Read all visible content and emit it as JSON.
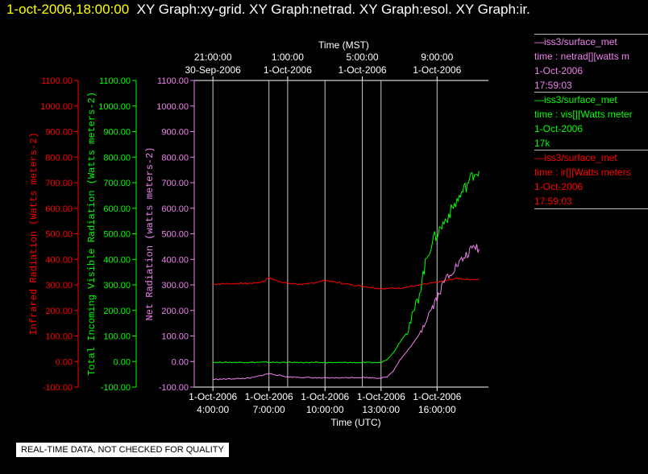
{
  "header": {
    "timestamp": "1-oct-2006,18:00:00",
    "graphs": "XY Graph:xy-grid.  XY Graph:netrad.  XY Graph:esol.  XY Graph:ir."
  },
  "legend": [
    {
      "lines": [
        "—iss3/surface_met",
        "time : netrad[][watts m",
        "1-Oct-2006",
        "17:59:03"
      ],
      "color": "#ee82ee"
    },
    {
      "lines": [
        "—iss3/surface_met",
        "time : vis[][Watts meter",
        "1-Oct-2006",
        "17k"
      ],
      "color": "#00ff00"
    },
    {
      "lines": [
        "—iss3/surface_met",
        "time : ir[][Watts meters",
        "1-Oct-2006",
        "17:59:03"
      ],
      "color": "#ff0000"
    }
  ],
  "note": "REAL-TIME DATA, NOT CHECKED FOR QUALITY",
  "chart_data": {
    "type": "line",
    "bottom_axis": {
      "label": "Time (UTC)",
      "range": [
        "1-Oct-2006 03:00",
        "1-Oct-2006 18:45"
      ],
      "ticks": [
        {
          "t": "1-Oct-2006 04:00",
          "date": "1-Oct-2006",
          "time": "4:00:00"
        },
        {
          "t": "1-Oct-2006 07:00",
          "date": "1-Oct-2006",
          "time": "7:00:00"
        },
        {
          "t": "1-Oct-2006 10:00",
          "date": "1-Oct-2006",
          "time": "10:00:00"
        },
        {
          "t": "1-Oct-2006 13:00",
          "date": "1-Oct-2006",
          "time": "13:00:00"
        },
        {
          "t": "1-Oct-2006 16:00",
          "date": "1-Oct-2006",
          "time": "16:00:00"
        }
      ]
    },
    "top_axis": {
      "label": "Time (MST)",
      "ticks": [
        {
          "t": "1-Oct-2006 04:00",
          "time": "21:00:00",
          "date": "30-Sep-2006"
        },
        {
          "t": "1-Oct-2006 08:00",
          "time": "1:00:00",
          "date": "1-Oct-2006"
        },
        {
          "t": "1-Oct-2006 12:00",
          "time": "5:00:00",
          "date": "1-Oct-2006"
        },
        {
          "t": "1-Oct-2006 16:00",
          "time": "9:00:00",
          "date": "1-Oct-2006"
        }
      ]
    },
    "y_axes": [
      {
        "label": "Infrared Radiation (Watts meters-2)",
        "color": "#ff0000",
        "ticks": [
          "1100.00",
          "1000.00",
          "900.00",
          "800.00",
          "700.00",
          "600.00",
          "500.00",
          "400.00",
          "300.00",
          "200.00",
          "100.00",
          "0.00",
          "-100.00"
        ]
      },
      {
        "label": "Total Incoming Visible Radiation (Watts meters-2)",
        "color": "#00ff00",
        "ticks": [
          "1100.00",
          "1000.00",
          "900.00",
          "800.00",
          "700.00",
          "600.00",
          "500.00",
          "400.00",
          "300.00",
          "200.00",
          "100.00",
          "0.00",
          "-100.00"
        ]
      },
      {
        "label": "Net Radiation (watts meters-2)",
        "color": "#ee82ee",
        "ticks": [
          "1100.00",
          "1000.00",
          "900.00",
          "800.00",
          "700.00",
          "600.00",
          "500.00",
          "400.00",
          "300.00",
          "200.00",
          "100.00",
          "0.00",
          "-100.00"
        ]
      }
    ],
    "ylim": [
      -100,
      1100
    ],
    "grid": "vertical",
    "series": [
      {
        "color": "#ff0000",
        "points": [
          [
            "1-Oct-2006 04:00",
            303
          ],
          [
            "1-Oct-2006 05:00",
            305
          ],
          [
            "1-Oct-2006 06:00",
            306
          ],
          [
            "1-Oct-2006 06:40",
            312
          ],
          [
            "1-Oct-2006 07:00",
            328
          ],
          [
            "1-Oct-2006 07:20",
            318
          ],
          [
            "1-Oct-2006 08:00",
            306
          ],
          [
            "1-Oct-2006 09:00",
            302
          ],
          [
            "1-Oct-2006 10:00",
            318
          ],
          [
            "1-Oct-2006 11:00",
            305
          ],
          [
            "1-Oct-2006 12:00",
            295
          ],
          [
            "1-Oct-2006 13:00",
            285
          ],
          [
            "1-Oct-2006 14:00",
            288
          ],
          [
            "1-Oct-2006 15:00",
            298
          ],
          [
            "1-Oct-2006 16:00",
            310
          ],
          [
            "1-Oct-2006 17:00",
            325
          ],
          [
            "1-Oct-2006 18:15",
            320
          ]
        ]
      },
      {
        "color": "#00ff00",
        "points": [
          [
            "1-Oct-2006 04:00",
            -3
          ],
          [
            "1-Oct-2006 07:00",
            -3
          ],
          [
            "1-Oct-2006 10:00",
            -4
          ],
          [
            "1-Oct-2006 13:00",
            -4
          ],
          [
            "1-Oct-2006 13:20",
            10
          ],
          [
            "1-Oct-2006 13:40",
            35
          ],
          [
            "1-Oct-2006 14:00",
            75
          ],
          [
            "1-Oct-2006 14:20",
            110
          ],
          [
            "1-Oct-2006 14:40",
            170
          ],
          [
            "1-Oct-2006 15:00",
            250
          ],
          [
            "1-Oct-2006 15:15",
            340
          ],
          [
            "1-Oct-2006 15:30",
            420
          ],
          [
            "1-Oct-2006 15:45",
            470
          ],
          [
            "1-Oct-2006 16:00",
            500
          ],
          [
            "1-Oct-2006 16:30",
            560
          ],
          [
            "1-Oct-2006 17:00",
            620
          ],
          [
            "1-Oct-2006 17:30",
            680
          ],
          [
            "1-Oct-2006 18:00",
            740
          ],
          [
            "1-Oct-2006 18:15",
            745
          ]
        ]
      },
      {
        "color": "#ee82ee",
        "points": [
          [
            "1-Oct-2006 04:00",
            -70
          ],
          [
            "1-Oct-2006 06:00",
            -65
          ],
          [
            "1-Oct-2006 07:00",
            -47
          ],
          [
            "1-Oct-2006 08:00",
            -60
          ],
          [
            "1-Oct-2006 10:00",
            -65
          ],
          [
            "1-Oct-2006 12:00",
            -62
          ],
          [
            "1-Oct-2006 13:00",
            -65
          ],
          [
            "1-Oct-2006 13:20",
            -60
          ],
          [
            "1-Oct-2006 13:40",
            -35
          ],
          [
            "1-Oct-2006 14:00",
            5
          ],
          [
            "1-Oct-2006 14:30",
            50
          ],
          [
            "1-Oct-2006 15:00",
            100
          ],
          [
            "1-Oct-2006 15:30",
            180
          ],
          [
            "1-Oct-2006 16:00",
            250
          ],
          [
            "1-Oct-2006 16:30",
            330
          ],
          [
            "1-Oct-2006 17:00",
            370
          ],
          [
            "1-Oct-2006 17:30",
            410
          ],
          [
            "1-Oct-2006 18:00",
            450
          ],
          [
            "1-Oct-2006 18:15",
            440
          ]
        ]
      }
    ]
  }
}
